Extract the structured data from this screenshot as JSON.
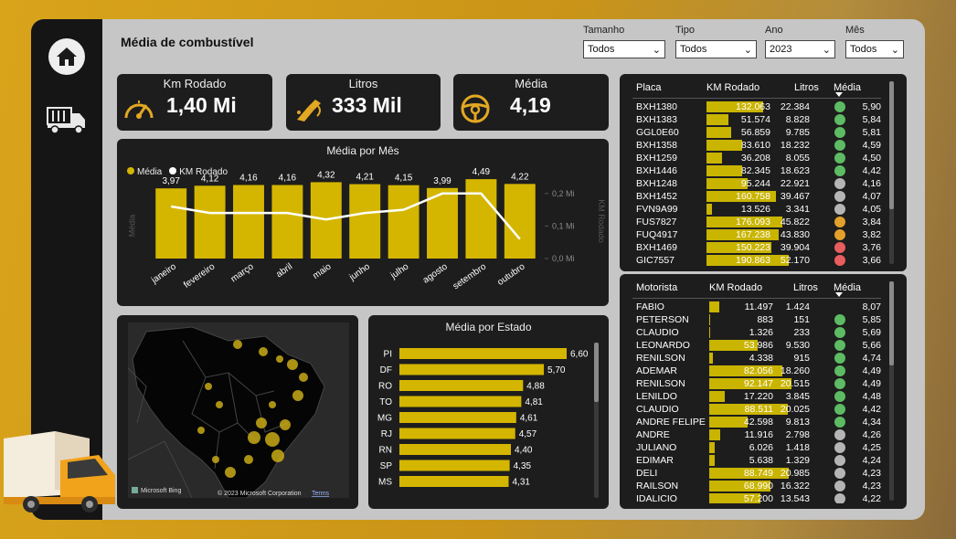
{
  "page_title": "Média de combustível",
  "filters": [
    {
      "label": "Tamanho",
      "value": "Todos"
    },
    {
      "label": "Tipo",
      "value": "Todos"
    },
    {
      "label": "Ano",
      "value": "2023"
    },
    {
      "label": "Mês",
      "value": "Todos"
    }
  ],
  "kpis": {
    "km": {
      "label": "Km Rodado",
      "value": "1,40 Mi"
    },
    "litros": {
      "label": "Litros",
      "value": "333 Mil"
    },
    "media": {
      "label": "Média",
      "value": "4,19"
    }
  },
  "monthly": {
    "title": "Média por Mês",
    "legend": [
      "Média",
      "KM Rodado"
    ],
    "axis_left": "Média",
    "axis_right": "KM Rodado",
    "right_ticks": [
      "0,2 Mi",
      "0,1 Mi",
      "0,0 Mi"
    ]
  },
  "state": {
    "title": "Média por Estado"
  },
  "map": {
    "brand": "Microsoft Bing",
    "copyright": "© 2023 Microsoft Corporation",
    "terms": "Terms"
  },
  "vehicles": {
    "headers": [
      "Placa",
      "KM Rodado",
      "Litros",
      "Média"
    ],
    "rows": [
      {
        "placa": "BXH1380",
        "km": "132.063",
        "kmv": 132063,
        "litros": "22.384",
        "media": "5,90",
        "status": "green"
      },
      {
        "placa": "BXH1383",
        "km": "51.574",
        "kmv": 51574,
        "litros": "8.828",
        "media": "5,84",
        "status": "green"
      },
      {
        "placa": "GGL0E60",
        "km": "56.859",
        "kmv": 56859,
        "litros": "9.785",
        "media": "5,81",
        "status": "green"
      },
      {
        "placa": "BXH1358",
        "km": "83.610",
        "kmv": 83610,
        "litros": "18.232",
        "media": "4,59",
        "status": "green"
      },
      {
        "placa": "BXH1259",
        "km": "36.208",
        "kmv": 36208,
        "litros": "8.055",
        "media": "4,50",
        "status": "green"
      },
      {
        "placa": "BXH1446",
        "km": "82.345",
        "kmv": 82345,
        "litros": "18.623",
        "media": "4,42",
        "status": "green"
      },
      {
        "placa": "BXH1248",
        "km": "95.244",
        "kmv": 95244,
        "litros": "22.921",
        "media": "4,16",
        "status": "gray"
      },
      {
        "placa": "BXH1452",
        "km": "160.758",
        "kmv": 160758,
        "litros": "39.467",
        "media": "4,07",
        "status": "gray"
      },
      {
        "placa": "FVN9A99",
        "km": "13.526",
        "kmv": 13526,
        "litros": "3.341",
        "media": "4,05",
        "status": "gray"
      },
      {
        "placa": "FUS7827",
        "km": "176.093",
        "kmv": 176093,
        "litros": "45.822",
        "media": "3,84",
        "status": "orange"
      },
      {
        "placa": "FUQ4917",
        "km": "167.238",
        "kmv": 167238,
        "litros": "43.830",
        "media": "3,82",
        "status": "orange"
      },
      {
        "placa": "BXH1469",
        "km": "150.223",
        "kmv": 150223,
        "litros": "39.904",
        "media": "3,76",
        "status": "red"
      },
      {
        "placa": "GIC7557",
        "km": "190.863",
        "kmv": 190863,
        "litros": "52.170",
        "media": "3,66",
        "status": "red"
      }
    ]
  },
  "drivers": {
    "headers": [
      "Motorista",
      "KM Rodado",
      "Litros",
      "Média"
    ],
    "rows": [
      {
        "nome": "FABIO",
        "km": "11.497",
        "kmv": 11497,
        "litros": "1.424",
        "media": "8,07",
        "status": "none"
      },
      {
        "nome": "PETERSON",
        "km": "883",
        "kmv": 883,
        "litros": "151",
        "media": "5,85",
        "status": "green"
      },
      {
        "nome": "CLAUDIO",
        "km": "1.326",
        "kmv": 1326,
        "litros": "233",
        "media": "5,69",
        "status": "green"
      },
      {
        "nome": "LEONARDO",
        "km": "53.986",
        "kmv": 53986,
        "litros": "9.530",
        "media": "5,66",
        "status": "green"
      },
      {
        "nome": "RENILSON",
        "km": "4.338",
        "kmv": 4338,
        "litros": "915",
        "media": "4,74",
        "status": "green"
      },
      {
        "nome": "ADEMAR",
        "km": "82.056",
        "kmv": 82056,
        "litros": "18.260",
        "media": "4,49",
        "status": "green"
      },
      {
        "nome": "RENILSON",
        "km": "92.147",
        "kmv": 92147,
        "litros": "20.515",
        "media": "4,49",
        "status": "green"
      },
      {
        "nome": "LENILDO",
        "km": "17.220",
        "kmv": 17220,
        "litros": "3.845",
        "media": "4,48",
        "status": "green"
      },
      {
        "nome": "CLAUDIO",
        "km": "88.511",
        "kmv": 88511,
        "litros": "20.025",
        "media": "4,42",
        "status": "green"
      },
      {
        "nome": "ANDRE FELIPE",
        "km": "42.598",
        "kmv": 42598,
        "litros": "9.813",
        "media": "4,34",
        "status": "green"
      },
      {
        "nome": "ANDRE",
        "km": "11.916",
        "kmv": 11916,
        "litros": "2.798",
        "media": "4,26",
        "status": "gray"
      },
      {
        "nome": "JULIANO",
        "km": "6.026",
        "kmv": 6026,
        "litros": "1.418",
        "media": "4,25",
        "status": "gray"
      },
      {
        "nome": "EDIMAR",
        "km": "5.638",
        "kmv": 5638,
        "litros": "1.329",
        "media": "4,24",
        "status": "gray"
      },
      {
        "nome": "DELI",
        "km": "88.749",
        "kmv": 88749,
        "litros": "20.985",
        "media": "4,23",
        "status": "gray"
      },
      {
        "nome": "RAILSON",
        "km": "68.990",
        "kmv": 68990,
        "litros": "16.322",
        "media": "4,23",
        "status": "gray"
      },
      {
        "nome": "IDALICIO",
        "km": "57.200",
        "kmv": 57200,
        "litros": "13.543",
        "media": "4,22",
        "status": "gray"
      }
    ]
  },
  "colors": {
    "accent": "#d4b600",
    "green": "#5dbb63",
    "gray": "#b5b5b5",
    "orange": "#e3a02b",
    "red": "#e85d5d"
  },
  "chart_data": [
    {
      "type": "bar",
      "title": "Média por Mês",
      "categories": [
        "janeiro",
        "fevereiro",
        "março",
        "abril",
        "maio",
        "junho",
        "julho",
        "agosto",
        "setembro",
        "outubro"
      ],
      "series": [
        {
          "name": "Média",
          "values": [
            3.97,
            4.12,
            4.16,
            4.16,
            4.32,
            4.21,
            4.15,
            3.99,
            4.49,
            4.22
          ],
          "labels": [
            "3,97",
            "4,12",
            "4,16",
            "4,16",
            "4,32",
            "4,21",
            "4,15",
            "3,99",
            "4,49",
            "4,22"
          ]
        },
        {
          "name": "KM Rodado",
          "type": "line",
          "values": [
            0.16,
            0.14,
            0.14,
            0.14,
            0.12,
            0.14,
            0.15,
            0.2,
            0.2,
            0.06
          ]
        }
      ],
      "ylim": [
        0,
        4.6
      ],
      "y2lim": [
        0,
        0.25
      ],
      "y2_ticks": [
        "0,0 Mi",
        "0,1 Mi",
        "0,2 Mi"
      ],
      "legend": "top-left"
    },
    {
      "type": "bar",
      "orientation": "horizontal",
      "title": "Média por Estado",
      "categories": [
        "PI",
        "DF",
        "RO",
        "TO",
        "MG",
        "RJ",
        "RN",
        "SP",
        "MS"
      ],
      "values": [
        6.6,
        5.7,
        4.88,
        4.81,
        4.61,
        4.57,
        4.4,
        4.35,
        4.31
      ],
      "labels": [
        "6,60",
        "5,70",
        "4,88",
        "4,81",
        "4,61",
        "4,57",
        "4,40",
        "4,35",
        "4,31"
      ],
      "xlim": [
        0,
        7
      ]
    }
  ]
}
